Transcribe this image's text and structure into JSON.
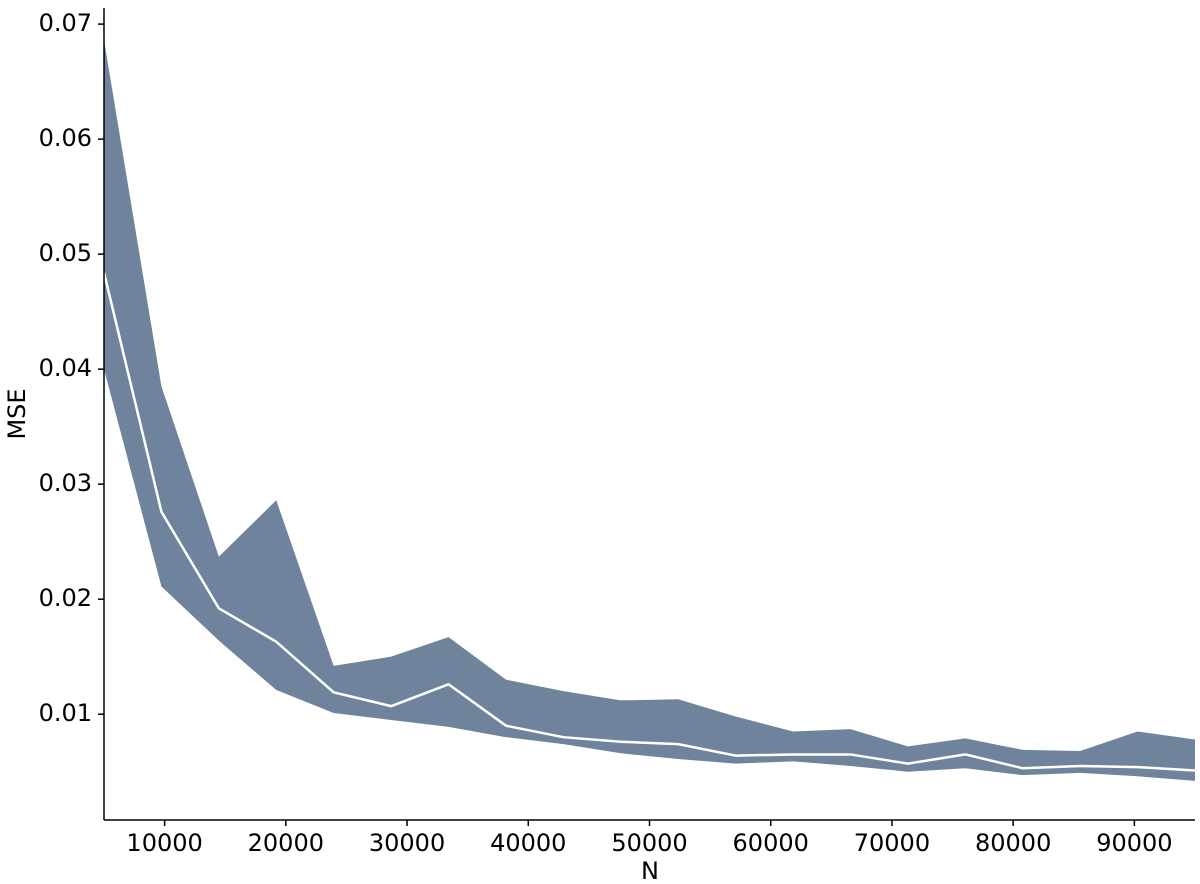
{
  "chart_data": {
    "type": "band-line",
    "x_label": "N",
    "y_label": "MSE",
    "x": [
      5000,
      9737,
      14474,
      19211,
      23947,
      28684,
      33421,
      38158,
      42895,
      47632,
      52368,
      57105,
      61842,
      66579,
      71316,
      76053,
      80789,
      85526,
      90263,
      95000
    ],
    "mean": {
      "color": "#ffffff",
      "values": [
        0.0484,
        0.0276,
        0.0192,
        0.0163,
        0.0119,
        0.0107,
        0.0126,
        0.009,
        0.008,
        0.0076,
        0.0074,
        0.0064,
        0.0065,
        0.0065,
        0.0057,
        0.0065,
        0.0053,
        0.0055,
        0.0054,
        0.0051
      ]
    },
    "band": {
      "color": "#6f849c",
      "upper": [
        0.0686,
        0.0385,
        0.0237,
        0.0286,
        0.0142,
        0.015,
        0.0167,
        0.013,
        0.012,
        0.0112,
        0.0113,
        0.0098,
        0.0085,
        0.0087,
        0.0072,
        0.0079,
        0.0069,
        0.0068,
        0.0085,
        0.0078
      ],
      "lower": [
        0.04,
        0.0211,
        0.0164,
        0.0121,
        0.0101,
        0.0095,
        0.0089,
        0.008,
        0.0074,
        0.0066,
        0.0061,
        0.0057,
        0.0059,
        0.0055,
        0.005,
        0.0053,
        0.0047,
        0.0049,
        0.0046,
        0.0042
      ]
    },
    "xlim": [
      5000,
      95000
    ],
    "ylim": [
      0.0008,
      0.0714
    ],
    "xticks": [
      10000,
      20000,
      30000,
      40000,
      50000,
      60000,
      70000,
      80000,
      90000
    ],
    "yticks": [
      0.01,
      0.02,
      0.03,
      0.04,
      0.05,
      0.06,
      0.07
    ]
  }
}
